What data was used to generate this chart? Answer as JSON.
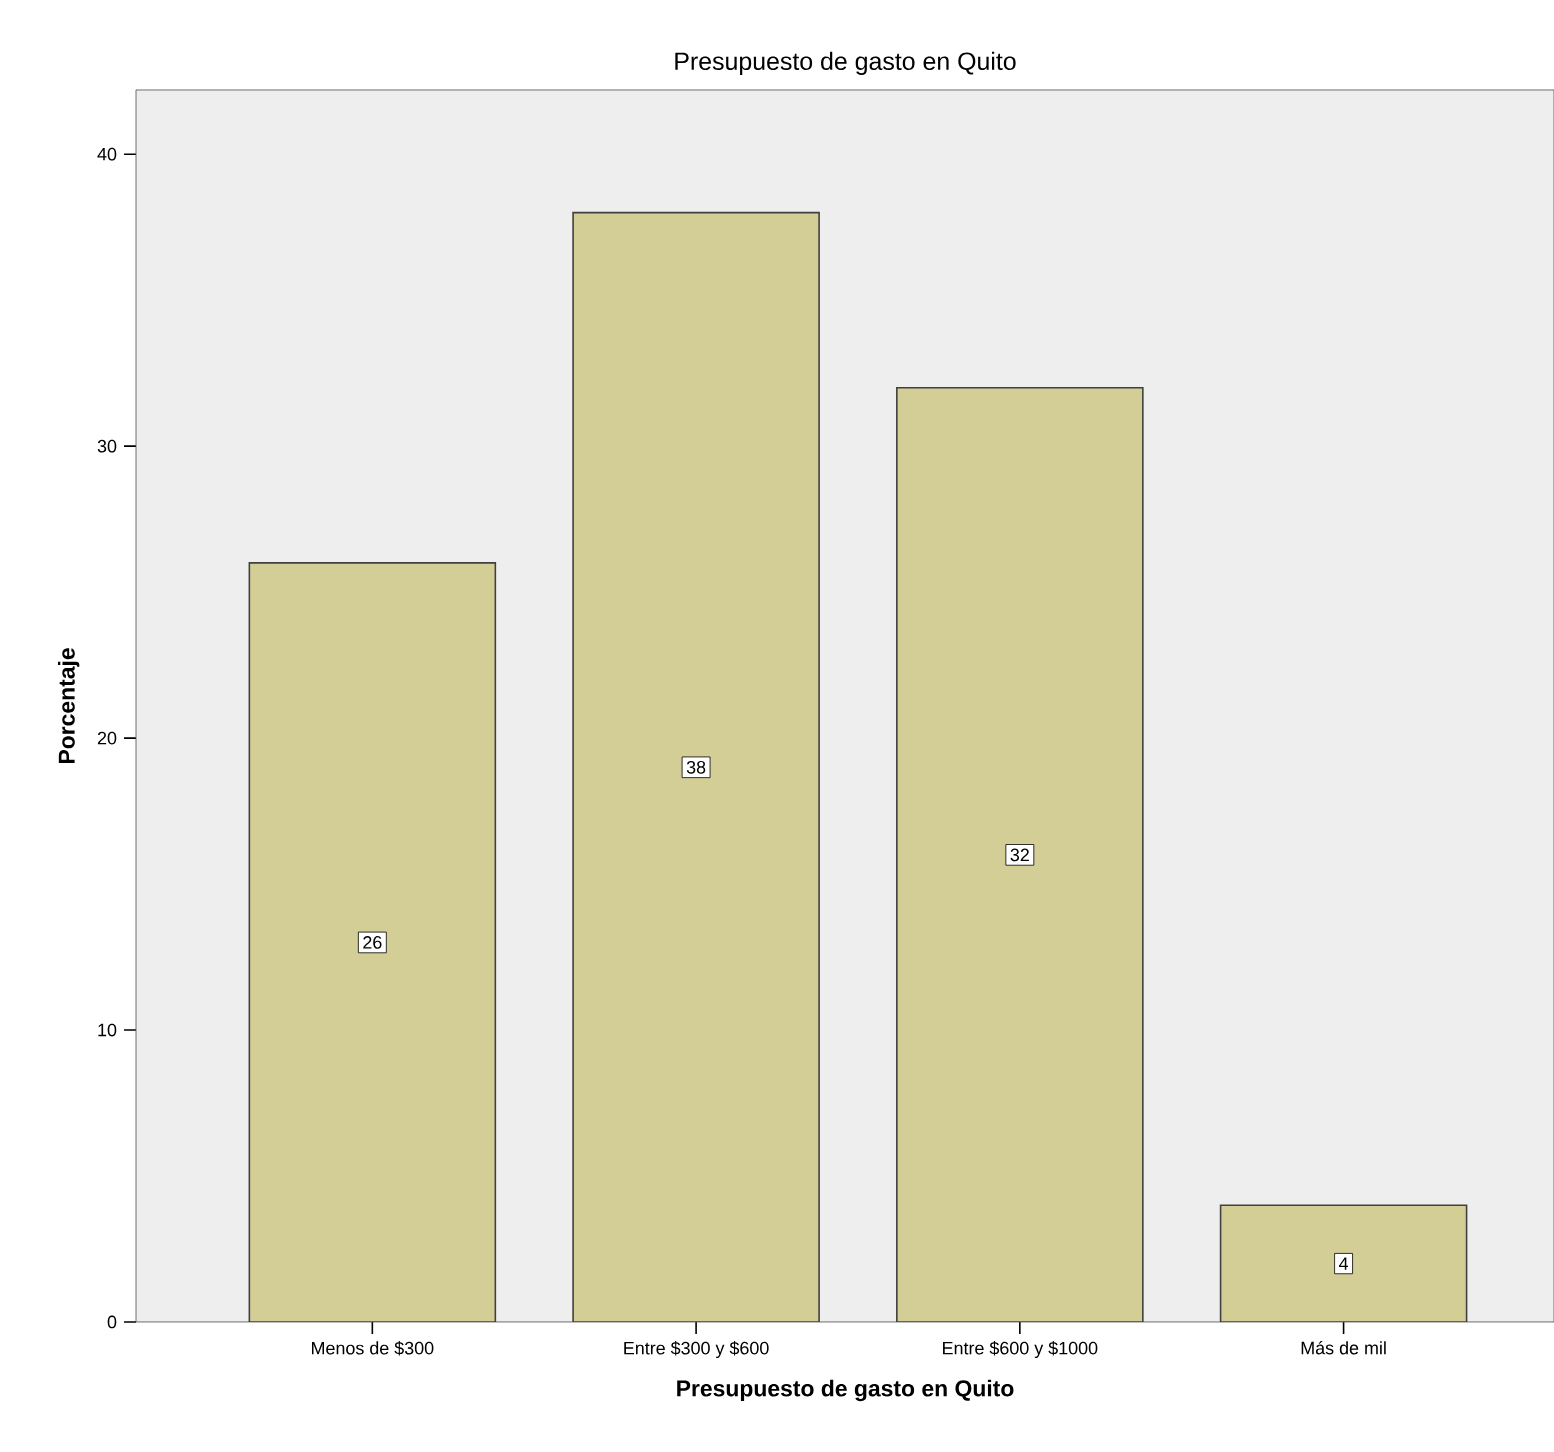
{
  "chart_data": {
    "type": "bar",
    "title": "Presupuesto de gasto en Quito",
    "xlabel": "Presupuesto de gasto en Quito",
    "ylabel": "Porcentaje",
    "categories": [
      "Menos de $300",
      "Entre $300 y $600",
      "Entre $600 y $1000",
      "Más de mil"
    ],
    "values": [
      26,
      38,
      32,
      4
    ],
    "color": "#d3cd96",
    "data_labels": true,
    "ylim": [
      0,
      42.2
    ],
    "yticks": [
      0,
      10,
      20,
      30,
      40
    ]
  }
}
